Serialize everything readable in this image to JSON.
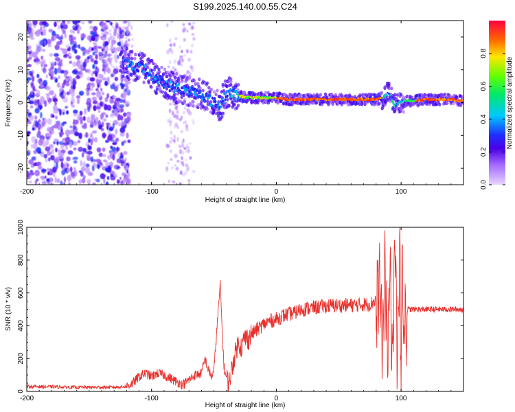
{
  "chart_data": [
    {
      "type": "heatmap",
      "title": "S199.2025.140.00.55.C24",
      "xlabel": "Height of straight line (km)",
      "ylabel": "Frequency (Hz)",
      "xlim": [
        -200,
        150
      ],
      "ylim": [
        -25,
        25
      ],
      "xticks": [
        -200,
        -100,
        0,
        100
      ],
      "yticks": [
        -20,
        -10,
        0,
        10,
        20
      ],
      "ridge": {
        "x": [
          -120,
          -115,
          -110,
          -105,
          -100,
          -95,
          -90,
          -85,
          -80,
          -75,
          -70,
          -65,
          -60,
          -55,
          -50,
          -45,
          -40,
          -35,
          -30,
          -20,
          -10,
          0,
          10,
          20,
          40,
          60,
          80,
          85,
          90,
          95,
          100,
          110,
          120,
          130,
          140,
          150
        ],
        "frequency": [
          12,
          11,
          11,
          10,
          8.5,
          7,
          6,
          5,
          4.5,
          4,
          3.5,
          3,
          2.5,
          1.5,
          0,
          -1,
          3,
          3,
          2,
          1.5,
          1.5,
          1.5,
          1,
          1,
          1,
          1,
          1,
          1.5,
          3,
          -1,
          0.5,
          0.5,
          1,
          1,
          1,
          0.5
        ]
      },
      "colorbar": {
        "label": "Normalized spectral amplitude",
        "min": 0,
        "max": 1,
        "ticks": [
          0,
          0.2,
          0.4,
          0.6,
          0.8
        ],
        "tick_labels": [
          "0.0",
          "0.2",
          "0.4",
          "0.6",
          "0.8"
        ]
      }
    },
    {
      "type": "line",
      "xlabel": "Height of straight line (km)",
      "ylabel": "SNR (10 * v/v)",
      "xlim": [
        -200,
        150
      ],
      "ylim": [
        0,
        1000
      ],
      "xticks": [
        -200,
        -100,
        0,
        100
      ],
      "yticks": [
        0,
        200,
        400,
        600,
        800,
        1000
      ],
      "series": [
        {
          "name": "SNR",
          "color": "#e8302c",
          "x": [
            -200,
            -180,
            -160,
            -140,
            -130,
            -120,
            -115,
            -110,
            -105,
            -100,
            -95,
            -90,
            -85,
            -80,
            -75,
            -70,
            -65,
            -60,
            -57,
            -55,
            -52,
            -50,
            -47,
            -45,
            -42,
            -40,
            -38,
            -36,
            -34,
            -32,
            -30,
            -28,
            -25,
            -22,
            -20,
            -15,
            -10,
            -5,
            0,
            5,
            10,
            15,
            20,
            30,
            40,
            50,
            60,
            70,
            75,
            80,
            83,
            85,
            87,
            89,
            91,
            93,
            95,
            97,
            99,
            100,
            101,
            102,
            103,
            104,
            105,
            110,
            120,
            130,
            140,
            150
          ],
          "values": [
            30,
            28,
            25,
            25,
            25,
            30,
            50,
            90,
            110,
            90,
            110,
            100,
            80,
            60,
            40,
            70,
            100,
            110,
            200,
            140,
            90,
            130,
            450,
            650,
            150,
            80,
            60,
            120,
            200,
            260,
            300,
            270,
            330,
            320,
            350,
            380,
            410,
            430,
            440,
            460,
            470,
            480,
            500,
            510,
            520,
            525,
            525,
            530,
            530,
            560,
            700,
            350,
            800,
            250,
            850,
            150,
            950,
            200,
            900,
            50,
            1000,
            100,
            700,
            300,
            500,
            500,
            500,
            500,
            500,
            500
          ]
        }
      ]
    }
  ]
}
